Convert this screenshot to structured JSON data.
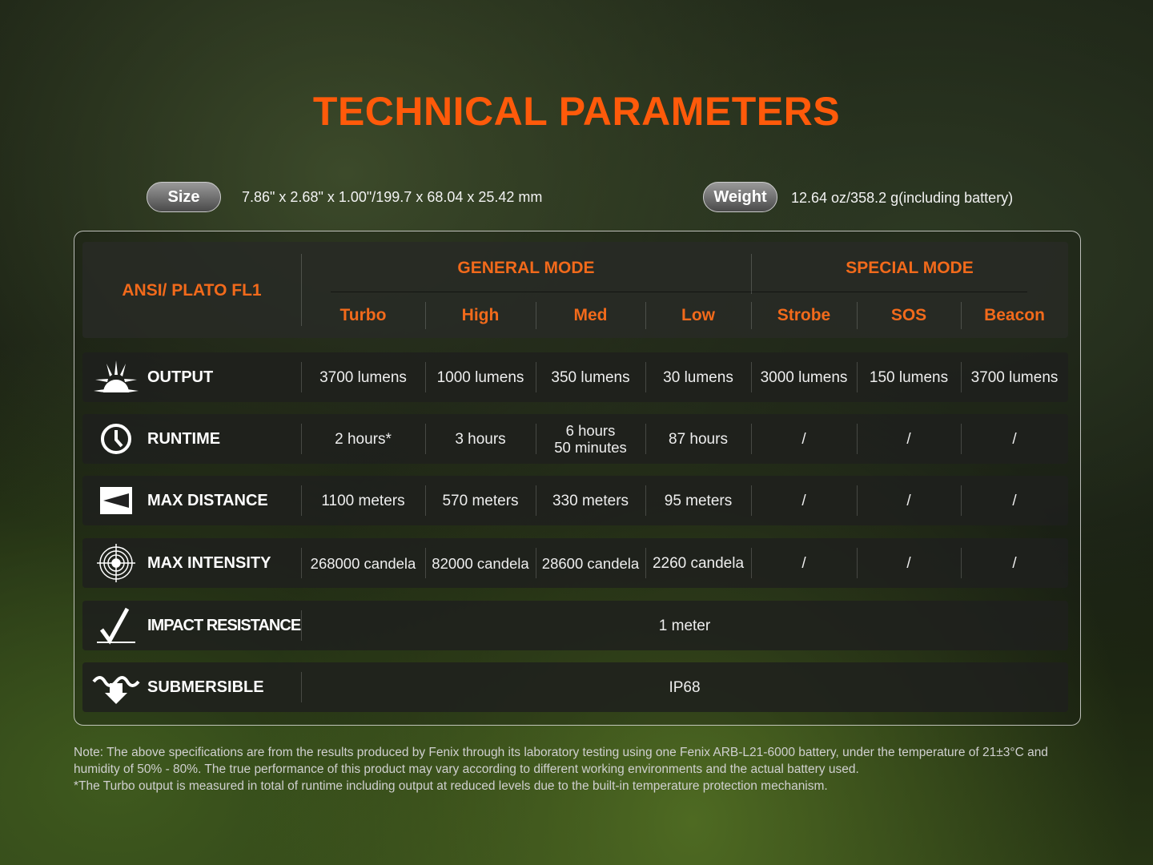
{
  "title": "TECHNICAL PARAMETERS",
  "size": {
    "label": "Size",
    "value": "7.86\" x 2.68\" x 1.00\"/199.7 x 68.04 x 25.42 mm"
  },
  "weight": {
    "label": "Weight",
    "value": "12.64 oz/358.2 g(including battery)"
  },
  "table": {
    "corner": "ANSI/ PLATO  FL1",
    "groups": [
      "GENERAL MODE",
      "SPECIAL MODE"
    ],
    "modes": [
      "Turbo",
      "High",
      "Med",
      "Low",
      "Strobe",
      "SOS",
      "Beacon"
    ],
    "rows": [
      {
        "label": "OUTPUT",
        "icon": "sun-rays-icon",
        "values": [
          "3700 lumens",
          "1000 lumens",
          "350 lumens",
          "30 lumens",
          "3000 lumens",
          "150 lumens",
          "3700 lumens"
        ]
      },
      {
        "label": "RUNTIME",
        "icon": "clock-icon",
        "values": [
          "2 hours*",
          "3 hours",
          "6 hours\n50 minutes",
          "87 hours",
          "/",
          "/",
          "/"
        ]
      },
      {
        "label": "MAX DISTANCE",
        "icon": "distance-icon",
        "values": [
          "1100 meters",
          "570 meters",
          "330 meters",
          "95 meters",
          "/",
          "/",
          "/"
        ]
      },
      {
        "label": "MAX INTENSITY",
        "icon": "target-icon",
        "values": [
          "268000 candela",
          "82000 candela",
          "28600 candela",
          "2260 candela",
          "/",
          "/",
          "/"
        ]
      },
      {
        "label": "IMPACT RESISTANCE",
        "icon": "impact-check-icon",
        "value": "1 meter"
      },
      {
        "label": "SUBMERSIBLE",
        "icon": "water-arrow-icon",
        "value": "IP68"
      }
    ]
  },
  "notes": [
    "Note: The above specifications are from the results produced by Fenix through its laboratory testing using one Fenix ARB-L21-6000 battery, under the temperature of 21±3°C and humidity of 50% - 80%. The true performance of this product may vary according to different working environments and the actual battery used.",
    "*The Turbo output is measured in total of runtime including output at reduced levels due to the built-in temperature protection mechanism."
  ],
  "colors": {
    "accent": "#ff5a0a",
    "header": "#f26a1b"
  }
}
